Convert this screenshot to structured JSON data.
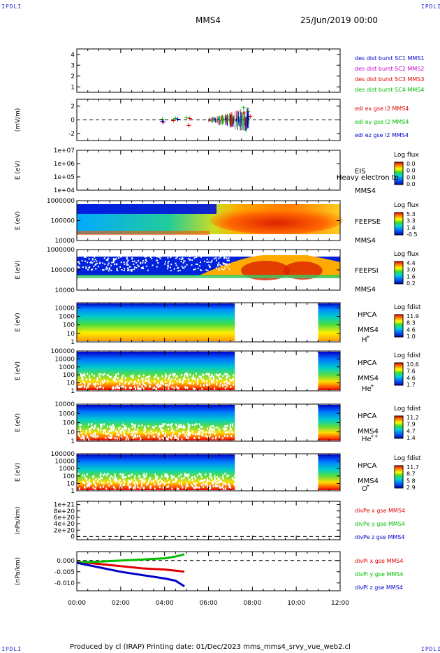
{
  "corner_labels": {
    "top_left": "IPDLI",
    "top_right": "IPDLI",
    "bottom_left": "IPDLI",
    "bottom_right": "IPDLI"
  },
  "header": {
    "spacecraft": "MMS4",
    "datetime": "25/Jun/2019 00:00"
  },
  "footer": {
    "text": "Produced by cl (IRAP)    Printing date: 01/Dec/2023    mms_mms4_srvy_vue_web2.cl"
  },
  "colors": {
    "blue": "#0000cc",
    "magenta": "#cc00cc",
    "red": "#e00000",
    "green": "#00bb00",
    "black": "#000000"
  },
  "chart_data": [
    {
      "type": "line",
      "id": "burst",
      "ylabel": "",
      "ylim": [
        0.5,
        4.5
      ],
      "yticks": [
        "1",
        "2",
        "3",
        "4"
      ],
      "series": [
        {
          "name": "des dist burst SC1 MMS1",
          "values": []
        },
        {
          "name": "des dist burst SC2 MMS2",
          "values": []
        },
        {
          "name": "des dist burst SC3 MMS3",
          "values": []
        },
        {
          "name": "des dist burst SC4 MMS4",
          "values": []
        }
      ]
    },
    {
      "type": "line",
      "id": "edi",
      "ylabel": "(mV/m)",
      "ylim": [
        -3,
        3
      ],
      "yticks": [
        "-2",
        "0",
        "2"
      ],
      "series": [
        {
          "name": "edi ex gse l2 MMS4",
          "points": [
            [
              3.95,
              -0.3
            ],
            [
              4.4,
              -0.1
            ],
            [
              5.1,
              -0.8
            ],
            [
              5.15,
              0.2
            ],
            [
              7.6,
              1.0
            ],
            [
              7.9,
              0.5
            ]
          ]
        },
        {
          "name": "edi ey gse l2 MMS4",
          "points": [
            [
              3.9,
              0.1
            ],
            [
              4.5,
              0.2
            ],
            [
              5.0,
              0.3
            ],
            [
              7.6,
              1.8
            ],
            [
              7.8,
              1.2
            ]
          ]
        },
        {
          "name": "edi ez gse l2 MMS4",
          "points": [
            [
              3.9,
              -0.2
            ],
            [
              4.6,
              0.1
            ],
            [
              7.7,
              -0.5
            ]
          ]
        }
      ]
    },
    {
      "type": "heatmap",
      "id": "eis",
      "ylabel": "E (eV)",
      "ylim": [
        10000.0,
        10000000.0
      ],
      "log": true,
      "yticks": [
        "1e+04",
        "1e+05",
        "1e+06",
        "1e+07"
      ],
      "labels": [
        "EIS",
        "Heavy electron to",
        "MMS4"
      ],
      "colorbar": {
        "title": "Log flux",
        "ticks": [
          "0.0",
          "0.0",
          "0.0",
          "0.0"
        ]
      }
    },
    {
      "type": "heatmap",
      "id": "feepse",
      "ylabel": "E (eV)",
      "ylim": [
        10000,
        1000000
      ],
      "log": true,
      "yticks": [
        "10000",
        "100000",
        "1000000"
      ],
      "labels": [
        "FEEPSE",
        "MMS4"
      ],
      "colorbar": {
        "title": "Log flux",
        "ticks": [
          "5.3",
          "3.3",
          "1.4",
          "-0.5"
        ]
      }
    },
    {
      "type": "heatmap",
      "id": "feepsi",
      "ylabel": "E (eV)",
      "ylim": [
        10000,
        1000000
      ],
      "log": true,
      "yticks": [
        "10000",
        "100000",
        "1000000"
      ],
      "labels": [
        "FEEPSI",
        "MMS4"
      ],
      "colorbar": {
        "title": "Log flux",
        "ticks": [
          "4.4",
          "3.0",
          "1.6",
          "0.2"
        ]
      }
    },
    {
      "type": "heatmap",
      "id": "hpca-h",
      "ylabel": "E (eV)",
      "ylim": [
        1,
        40000
      ],
      "log": true,
      "yticks": [
        "1",
        "10",
        "100",
        "1000",
        "10000"
      ],
      "labels": [
        "HPCA",
        "MMS4"
      ],
      "species": "H",
      "species_sup": "+",
      "colorbar": {
        "title": "Log fdist",
        "ticks": [
          "11.9",
          "8.3",
          "4.6",
          "1.0"
        ]
      },
      "data_gap_hours": [
        7.2,
        11.0
      ]
    },
    {
      "type": "heatmap",
      "id": "hpca-he1",
      "ylabel": "E (eV)",
      "ylim": [
        1,
        100000
      ],
      "log": true,
      "yticks": [
        "1",
        "10",
        "100",
        "1000",
        "10000",
        "100000"
      ],
      "labels": [
        "HPCA",
        "MMS4"
      ],
      "species": "He",
      "species_sup": "+",
      "colorbar": {
        "title": "Log fdist",
        "ticks": [
          "10.6",
          "7.6",
          "4.6",
          "1.7"
        ]
      },
      "data_gap_hours": [
        7.2,
        11.0
      ]
    },
    {
      "type": "heatmap",
      "id": "hpca-he2",
      "ylabel": "E (eV)",
      "ylim": [
        1,
        10000
      ],
      "log": true,
      "yticks": [
        "1",
        "10",
        "100",
        "1000",
        "10000"
      ],
      "labels": [
        "HPCA",
        "MMS4"
      ],
      "species": "He",
      "species_sup": "++",
      "colorbar": {
        "title": "Log fdist",
        "ticks": [
          "11.2",
          "7.9",
          "4.7",
          "1.4"
        ]
      },
      "data_gap_hours": [
        7.2,
        11.0
      ]
    },
    {
      "type": "heatmap",
      "id": "hpca-o",
      "ylabel": "E (eV)",
      "ylim": [
        1,
        100000
      ],
      "log": true,
      "yticks": [
        "1",
        "10",
        "100",
        "1000",
        "10000",
        "100000"
      ],
      "labels": [
        "HPCA",
        "MMS4"
      ],
      "species": "O",
      "species_sup": "+",
      "colorbar": {
        "title": "Log fdist",
        "ticks": [
          "11.7",
          "8.7",
          "5.8",
          "2.9"
        ]
      },
      "data_gap_hours": [
        7.2,
        11.0
      ]
    },
    {
      "type": "line",
      "id": "divpe",
      "ylabel": "(nPa/km)",
      "ylim": [
        -1e+20,
        1.1e+21
      ],
      "yticks": [
        "0",
        "2e+20",
        "4e+20",
        "6e+20",
        "8e+20",
        "1e+21"
      ],
      "series": [
        {
          "name": "divPe x gse MMS4",
          "values": []
        },
        {
          "name": "divPe y gse MMS4",
          "values": []
        },
        {
          "name": "divPe z gse MMS4",
          "values": []
        }
      ]
    },
    {
      "type": "line",
      "id": "divpi",
      "ylabel": "(nPa/km)",
      "ylim": [
        -0.0135,
        0.004
      ],
      "yticks": [
        "-0.010",
        "-0.005",
        "0.000"
      ],
      "xticks": [
        "00:00",
        "02:00",
        "04:00",
        "06:00",
        "08:00",
        "10:00",
        "12:00"
      ],
      "xlim_hours": [
        0,
        12
      ],
      "series": [
        {
          "name": "divPi x gse MMS4",
          "x": [
            0,
            1,
            2,
            3,
            4,
            4.5,
            4.9
          ],
          "y": [
            -0.0005,
            -0.0015,
            -0.0025,
            -0.0035,
            -0.004,
            -0.0045,
            -0.005
          ]
        },
        {
          "name": "divPi y gse MMS4",
          "x": [
            0,
            1,
            2,
            3,
            4,
            4.5,
            4.9
          ],
          "y": [
            -0.0008,
            -0.0005,
            0.0,
            0.0005,
            0.001,
            0.0018,
            0.0028
          ]
        },
        {
          "name": "divPi z gse MMS4",
          "x": [
            0,
            1,
            2,
            3,
            4,
            4.5,
            4.9
          ],
          "y": [
            -0.001,
            -0.003,
            -0.005,
            -0.0065,
            -0.008,
            -0.009,
            -0.0115
          ]
        }
      ]
    }
  ]
}
